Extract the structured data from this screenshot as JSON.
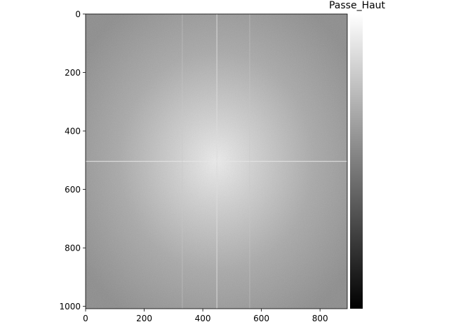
{
  "chart_data": {
    "type": "heatmap",
    "title": "Passe_Haut",
    "xlabel": "",
    "ylabel": "",
    "xlim": [
      0,
      893
    ],
    "ylim": [
      1008,
      0
    ],
    "x_ticks": [
      0,
      200,
      400,
      600,
      800
    ],
    "y_ticks": [
      0,
      200,
      400,
      600,
      800,
      1000
    ],
    "x_tick_labels": [
      "0",
      "200",
      "400",
      "600",
      "800"
    ],
    "y_tick_labels": [
      "0",
      "200",
      "400",
      "600",
      "800",
      "1000"
    ],
    "colormap": "gray",
    "colorbar": true,
    "grid": false,
    "description_values": {
      "image_width": 893,
      "image_height": 1008,
      "bright_center": [
        448,
        504
      ],
      "vertical_line_x": 448,
      "horizontal_line_y": 504
    }
  }
}
